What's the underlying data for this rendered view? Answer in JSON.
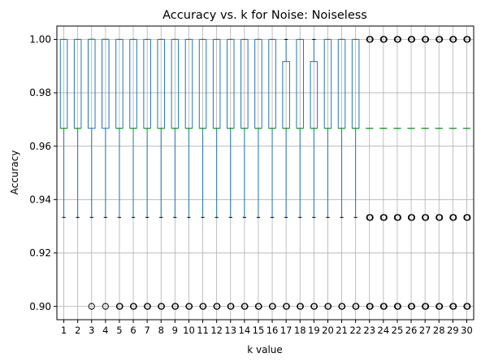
{
  "chart_data": {
    "type": "box",
    "title": "Accuracy vs. k for Noise: Noiseless",
    "xlabel": "k value",
    "ylabel": "Accuracy",
    "ylim": [
      0.895,
      1.005
    ],
    "yticks": [
      0.9,
      0.92,
      0.94,
      0.96,
      0.98,
      1.0
    ],
    "ytick_labels": [
      "0.90",
      "0.92",
      "0.94",
      "0.96",
      "0.98",
      "1.00"
    ],
    "grid": true,
    "categories": [
      "1",
      "2",
      "3",
      "4",
      "5",
      "6",
      "7",
      "8",
      "9",
      "10",
      "11",
      "12",
      "13",
      "14",
      "15",
      "16",
      "17",
      "18",
      "19",
      "20",
      "21",
      "22",
      "23",
      "24",
      "25",
      "26",
      "27",
      "28",
      "29",
      "30"
    ],
    "boxes": [
      {
        "k": 1,
        "q1": 0.9667,
        "median": 0.9667,
        "q3": 1.0,
        "whislo": 0.9333,
        "whishi": 1.0,
        "fliers": []
      },
      {
        "k": 2,
        "q1": 0.9667,
        "median": 0.9667,
        "q3": 1.0,
        "whislo": 0.9333,
        "whishi": 1.0,
        "fliers": []
      },
      {
        "k": 3,
        "q1": 0.9667,
        "median": 1.0,
        "q3": 1.0,
        "whislo": 0.9333,
        "whishi": 1.0,
        "fliers": [
          0.9
        ]
      },
      {
        "k": 4,
        "q1": 0.9667,
        "median": 1.0,
        "q3": 1.0,
        "whislo": 0.9333,
        "whishi": 1.0,
        "fliers": [
          0.9
        ]
      },
      {
        "k": 5,
        "q1": 0.9667,
        "median": 0.9667,
        "q3": 1.0,
        "whislo": 0.9333,
        "whishi": 1.0,
        "fliers": [
          0.9
        ]
      },
      {
        "k": 6,
        "q1": 0.9667,
        "median": 0.9667,
        "q3": 1.0,
        "whislo": 0.9333,
        "whishi": 1.0,
        "fliers": [
          0.9
        ]
      },
      {
        "k": 7,
        "q1": 0.9667,
        "median": 0.9667,
        "q3": 1.0,
        "whislo": 0.9333,
        "whishi": 1.0,
        "fliers": [
          0.9
        ]
      },
      {
        "k": 8,
        "q1": 0.9667,
        "median": 0.9667,
        "q3": 1.0,
        "whislo": 0.9333,
        "whishi": 1.0,
        "fliers": [
          0.9
        ]
      },
      {
        "k": 9,
        "q1": 0.9667,
        "median": 0.9667,
        "q3": 1.0,
        "whislo": 0.9333,
        "whishi": 1.0,
        "fliers": [
          0.9
        ]
      },
      {
        "k": 10,
        "q1": 0.9667,
        "median": 0.9667,
        "q3": 1.0,
        "whislo": 0.9333,
        "whishi": 1.0,
        "fliers": [
          0.9
        ]
      },
      {
        "k": 11,
        "q1": 0.9667,
        "median": 0.9667,
        "q3": 1.0,
        "whislo": 0.9333,
        "whishi": 1.0,
        "fliers": [
          0.9
        ]
      },
      {
        "k": 12,
        "q1": 0.9667,
        "median": 0.9667,
        "q3": 1.0,
        "whislo": 0.9333,
        "whishi": 1.0,
        "fliers": [
          0.9
        ]
      },
      {
        "k": 13,
        "q1": 0.9667,
        "median": 0.9667,
        "q3": 1.0,
        "whislo": 0.9333,
        "whishi": 1.0,
        "fliers": [
          0.9
        ]
      },
      {
        "k": 14,
        "q1": 0.9667,
        "median": 0.9667,
        "q3": 1.0,
        "whislo": 0.9333,
        "whishi": 1.0,
        "fliers": [
          0.9
        ]
      },
      {
        "k": 15,
        "q1": 0.9667,
        "median": 0.9667,
        "q3": 1.0,
        "whislo": 0.9333,
        "whishi": 1.0,
        "fliers": [
          0.9
        ]
      },
      {
        "k": 16,
        "q1": 0.9667,
        "median": 0.9667,
        "q3": 1.0,
        "whislo": 0.9333,
        "whishi": 1.0,
        "fliers": [
          0.9
        ]
      },
      {
        "k": 17,
        "q1": 0.9667,
        "median": 0.9667,
        "q3": 0.9917,
        "whislo": 0.9333,
        "whishi": 1.0,
        "fliers": [
          0.9
        ]
      },
      {
        "k": 18,
        "q1": 0.9667,
        "median": 0.9667,
        "q3": 1.0,
        "whislo": 0.9333,
        "whishi": 1.0,
        "fliers": [
          0.9
        ]
      },
      {
        "k": 19,
        "q1": 0.9667,
        "median": 0.9667,
        "q3": 0.9917,
        "whislo": 0.9333,
        "whishi": 1.0,
        "fliers": [
          0.9
        ]
      },
      {
        "k": 20,
        "q1": 0.9667,
        "median": 0.9667,
        "q3": 1.0,
        "whislo": 0.9333,
        "whishi": 1.0,
        "fliers": [
          0.9
        ]
      },
      {
        "k": 21,
        "q1": 0.9667,
        "median": 0.9667,
        "q3": 1.0,
        "whislo": 0.9333,
        "whishi": 1.0,
        "fliers": [
          0.9
        ]
      },
      {
        "k": 22,
        "q1": 0.9667,
        "median": 0.9667,
        "q3": 1.0,
        "whislo": 0.9333,
        "whishi": 1.0,
        "fliers": [
          0.9
        ]
      },
      {
        "k": 23,
        "q1": 0.9667,
        "median": 0.9667,
        "q3": 0.9667,
        "whislo": 0.9667,
        "whishi": 0.9667,
        "fliers": [
          1.0,
          0.9333,
          0.9
        ]
      },
      {
        "k": 24,
        "q1": 0.9667,
        "median": 0.9667,
        "q3": 0.9667,
        "whislo": 0.9667,
        "whishi": 0.9667,
        "fliers": [
          1.0,
          0.9333,
          0.9
        ]
      },
      {
        "k": 25,
        "q1": 0.9667,
        "median": 0.9667,
        "q3": 0.9667,
        "whislo": 0.9667,
        "whishi": 0.9667,
        "fliers": [
          1.0,
          0.9333,
          0.9
        ]
      },
      {
        "k": 26,
        "q1": 0.9667,
        "median": 0.9667,
        "q3": 0.9667,
        "whislo": 0.9667,
        "whishi": 0.9667,
        "fliers": [
          1.0,
          0.9333,
          0.9
        ]
      },
      {
        "k": 27,
        "q1": 0.9667,
        "median": 0.9667,
        "q3": 0.9667,
        "whislo": 0.9667,
        "whishi": 0.9667,
        "fliers": [
          1.0,
          0.9333,
          0.9
        ]
      },
      {
        "k": 28,
        "q1": 0.9667,
        "median": 0.9667,
        "q3": 0.9667,
        "whislo": 0.9667,
        "whishi": 0.9667,
        "fliers": [
          1.0,
          0.9333,
          0.9
        ]
      },
      {
        "k": 29,
        "q1": 0.9667,
        "median": 0.9667,
        "q3": 0.9667,
        "whislo": 0.9667,
        "whishi": 0.9667,
        "fliers": [
          1.0,
          0.9333,
          0.9
        ]
      },
      {
        "k": 30,
        "q1": 0.9667,
        "median": 0.9667,
        "q3": 0.9667,
        "whislo": 0.9667,
        "whishi": 0.9667,
        "fliers": [
          1.0,
          0.9333,
          0.9
        ]
      }
    ],
    "colors": {
      "box": "#1f77b4",
      "median": "#2ca02c",
      "whisker": "#1f77b4",
      "cap": "#000000",
      "flier": "#000000",
      "grid": "#b0b0b0"
    }
  }
}
